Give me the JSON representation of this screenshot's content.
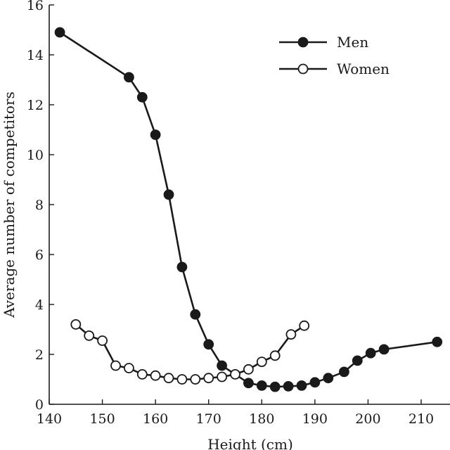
{
  "chart_data": {
    "type": "line",
    "title": "",
    "xlabel": "Height (cm)",
    "ylabel": "Average number of competitors",
    "xlim": [
      140,
      215
    ],
    "ylim": [
      0,
      16
    ],
    "x_ticks": [
      140,
      150,
      160,
      170,
      180,
      190,
      200,
      210
    ],
    "y_ticks": [
      0,
      2,
      4,
      6,
      8,
      10,
      12,
      14,
      16
    ],
    "grid": false,
    "legend_position": "top-right",
    "series": [
      {
        "name": "Men",
        "marker": "filled-circle",
        "color": "#1a1a1a",
        "points": [
          {
            "x": 142,
            "y": 14.9
          },
          {
            "x": 155,
            "y": 13.1
          },
          {
            "x": 157.5,
            "y": 12.3
          },
          {
            "x": 160,
            "y": 10.8
          },
          {
            "x": 162.5,
            "y": 8.4
          },
          {
            "x": 165,
            "y": 5.5
          },
          {
            "x": 167.5,
            "y": 3.6
          },
          {
            "x": 170,
            "y": 2.4
          },
          {
            "x": 172.5,
            "y": 1.55
          },
          {
            "x": 177.5,
            "y": 0.85
          },
          {
            "x": 180,
            "y": 0.75
          },
          {
            "x": 182.5,
            "y": 0.7
          },
          {
            "x": 185,
            "y": 0.72
          },
          {
            "x": 187.5,
            "y": 0.75
          },
          {
            "x": 190,
            "y": 0.88
          },
          {
            "x": 192.5,
            "y": 1.05
          },
          {
            "x": 195.5,
            "y": 1.3
          },
          {
            "x": 198,
            "y": 1.75
          },
          {
            "x": 200.5,
            "y": 2.05
          },
          {
            "x": 203,
            "y": 2.2
          },
          {
            "x": 213,
            "y": 2.5
          }
        ]
      },
      {
        "name": "Women",
        "marker": "open-circle",
        "color": "#1a1a1a",
        "points": [
          {
            "x": 145,
            "y": 3.2
          },
          {
            "x": 147.5,
            "y": 2.75
          },
          {
            "x": 150,
            "y": 2.55
          },
          {
            "x": 152.5,
            "y": 1.55
          },
          {
            "x": 155,
            "y": 1.45
          },
          {
            "x": 157.5,
            "y": 1.2
          },
          {
            "x": 160,
            "y": 1.15
          },
          {
            "x": 162.5,
            "y": 1.05
          },
          {
            "x": 165,
            "y": 1.0
          },
          {
            "x": 167.5,
            "y": 1.0
          },
          {
            "x": 170,
            "y": 1.05
          },
          {
            "x": 172.5,
            "y": 1.1
          },
          {
            "x": 175,
            "y": 1.2
          },
          {
            "x": 177.5,
            "y": 1.4
          },
          {
            "x": 180,
            "y": 1.7
          },
          {
            "x": 182.5,
            "y": 1.95
          },
          {
            "x": 185.5,
            "y": 2.8
          },
          {
            "x": 188,
            "y": 3.15
          }
        ]
      }
    ]
  }
}
